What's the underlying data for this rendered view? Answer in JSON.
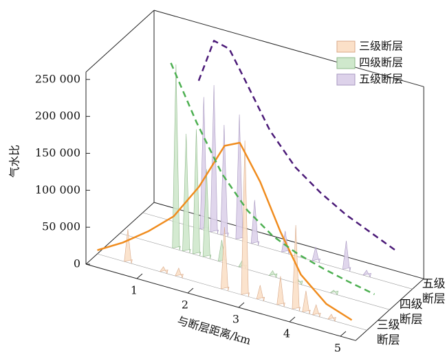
{
  "chart_data": {
    "type": "bar3d",
    "xlabel": "与断层距离/km",
    "ylabel": "气水比",
    "xlim": [
      0,
      5.3
    ],
    "xticks": [
      1,
      2,
      3,
      4,
      5
    ],
    "ylim": [
      0,
      260000
    ],
    "yticks": [
      0,
      {
        "value": 50000,
        "label": "50 000"
      },
      {
        "value": 100000,
        "label": "100 000"
      },
      {
        "value": 150000,
        "label": "150 000"
      },
      {
        "value": 200000,
        "label": "200 000"
      },
      {
        "value": 250000,
        "label": "250 000"
      }
    ],
    "depth_categories": [
      "三级断层",
      "四级断层",
      "五级断层"
    ],
    "series": [
      {
        "name": "三级断层",
        "color": "#fbe0c8",
        "edge": "#d8a888",
        "x": [
          0.6,
          1.3,
          1.6,
          2.5,
          2.9,
          3.2,
          3.6,
          3.9,
          4.1,
          4.3,
          4.6
        ],
        "values": [
          45000,
          8000,
          12000,
          85000,
          210000,
          20000,
          40000,
          115000,
          30000,
          15000,
          8000
        ],
        "fit": {
          "color": "#f08c1e",
          "dash": false,
          "x": [
            0,
            0.5,
            1,
            1.5,
            2,
            2.5,
            2.8,
            3.2,
            3.6,
            4,
            4.5,
            5
          ],
          "values": [
            5000,
            25000,
            50000,
            80000,
            130000,
            195000,
            205000,
            160000,
            100000,
            50000,
            20000,
            8000
          ]
        }
      },
      {
        "name": "四级断层",
        "color": "#cfe8cc",
        "edge": "#8fb88a",
        "x": [
          1.1,
          1.3,
          1.5,
          1.7,
          2.0,
          2.4,
          3.0,
          3.5,
          4.2
        ],
        "values": [
          250000,
          160000,
          170000,
          120000,
          30000,
          10000,
          8000,
          6000,
          5000
        ],
        "fit": {
          "color": "#4caf50",
          "dash": true,
          "x": [
            1,
            1.5,
            2,
            2.5,
            3,
            3.5,
            4,
            4.5,
            5
          ],
          "values": [
            250000,
            180000,
            120000,
            80000,
            55000,
            40000,
            30000,
            22000,
            15000
          ]
        }
      },
      {
        "name": "五级断层",
        "color": "#ddd2ea",
        "edge": "#a898c0",
        "x": [
          1.2,
          1.4,
          1.6,
          1.9,
          2.2,
          2.8,
          3.4,
          4.0,
          4.4
        ],
        "values": [
          180000,
          200000,
          150000,
          170000,
          60000,
          30000,
          20000,
          40000,
          8000
        ],
        "fit": {
          "color": "#4b1a78",
          "dash": true,
          "x": [
            1.1,
            1.4,
            1.7,
            2.0,
            2.5,
            3,
            3.5,
            4,
            4.5,
            5
          ],
          "values": [
            200000,
            260000,
            255000,
            220000,
            160000,
            120000,
            95000,
            75000,
            60000,
            45000
          ]
        }
      }
    ]
  }
}
